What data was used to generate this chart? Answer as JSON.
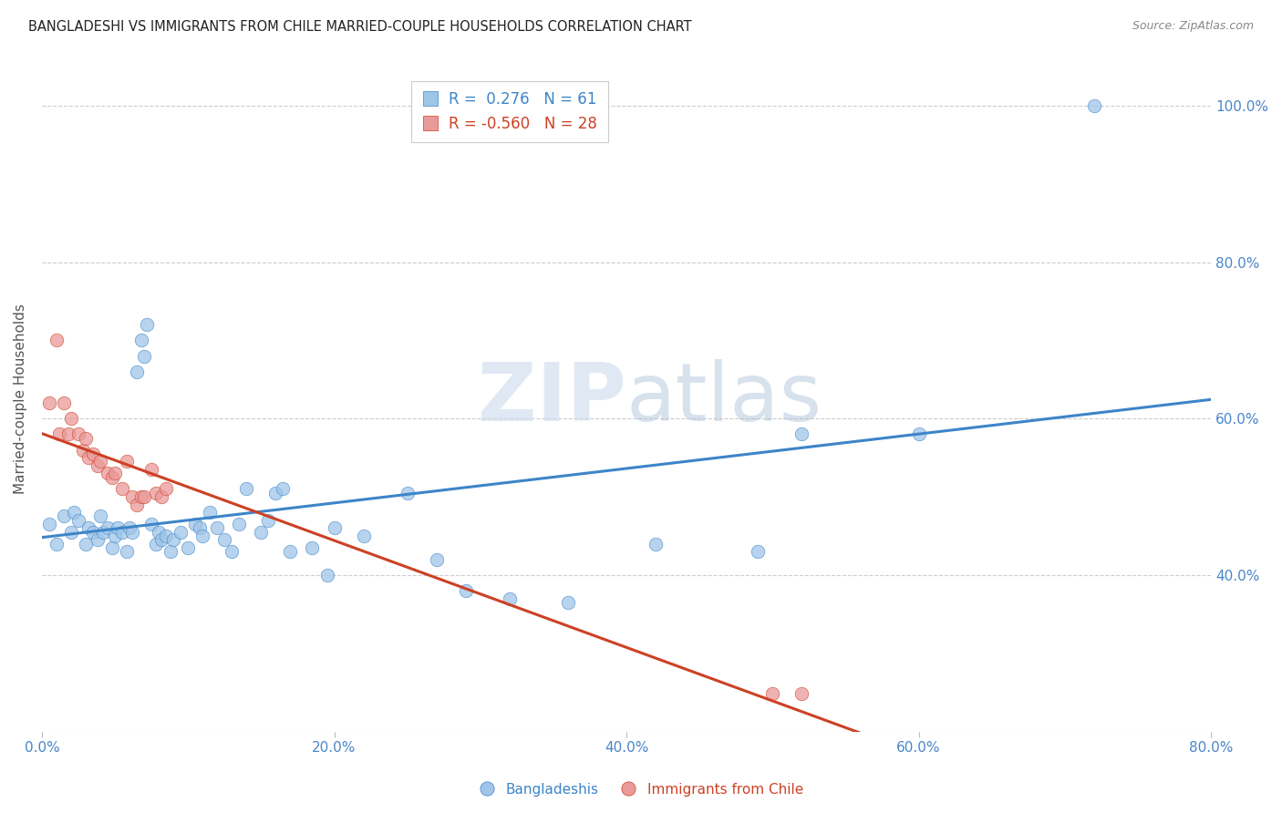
{
  "title": "BANGLADESHI VS IMMIGRANTS FROM CHILE MARRIED-COUPLE HOUSEHOLDS CORRELATION CHART",
  "source": "Source: ZipAtlas.com",
  "ylabel": "Married-couple Households",
  "xlim": [
    0.0,
    0.8
  ],
  "ylim": [
    0.2,
    1.05
  ],
  "ytick_values": [
    0.2,
    0.4,
    0.6,
    0.8,
    1.0
  ],
  "ytick_labels": [
    "",
    "40.0%",
    "60.0%",
    "80.0%",
    "100.0%"
  ],
  "xtick_values": [
    0.0,
    0.2,
    0.4,
    0.6,
    0.8
  ],
  "xtick_labels": [
    "0.0%",
    "20.0%",
    "40.0%",
    "60.0%",
    "80.0%"
  ],
  "blue_R": 0.276,
  "blue_N": 61,
  "pink_R": -0.56,
  "pink_N": 28,
  "blue_color": "#9fc5e8",
  "pink_color": "#ea9999",
  "blue_line_color": "#3d85c8",
  "pink_line_color": "#cc4125",
  "axis_color": "#4a86c8",
  "blue_scatter_x": [
    0.005,
    0.01,
    0.015,
    0.02,
    0.022,
    0.025,
    0.03,
    0.032,
    0.035,
    0.038,
    0.04,
    0.042,
    0.045,
    0.048,
    0.05,
    0.052,
    0.055,
    0.058,
    0.06,
    0.062,
    0.065,
    0.068,
    0.07,
    0.072,
    0.075,
    0.078,
    0.08,
    0.082,
    0.085,
    0.088,
    0.09,
    0.095,
    0.1,
    0.105,
    0.108,
    0.11,
    0.115,
    0.12,
    0.125,
    0.13,
    0.135,
    0.14,
    0.15,
    0.155,
    0.16,
    0.165,
    0.17,
    0.185,
    0.195,
    0.2,
    0.22,
    0.25,
    0.27,
    0.29,
    0.32,
    0.36,
    0.42,
    0.49,
    0.52,
    0.6,
    0.72
  ],
  "blue_scatter_y": [
    0.465,
    0.44,
    0.475,
    0.455,
    0.48,
    0.47,
    0.44,
    0.46,
    0.455,
    0.445,
    0.475,
    0.455,
    0.46,
    0.435,
    0.45,
    0.46,
    0.455,
    0.43,
    0.46,
    0.455,
    0.66,
    0.7,
    0.68,
    0.72,
    0.465,
    0.44,
    0.455,
    0.445,
    0.45,
    0.43,
    0.445,
    0.455,
    0.435,
    0.465,
    0.46,
    0.45,
    0.48,
    0.46,
    0.445,
    0.43,
    0.465,
    0.51,
    0.455,
    0.47,
    0.505,
    0.51,
    0.43,
    0.435,
    0.4,
    0.46,
    0.45,
    0.505,
    0.42,
    0.38,
    0.37,
    0.365,
    0.44,
    0.43,
    0.58,
    0.58,
    1.0
  ],
  "pink_scatter_x": [
    0.005,
    0.01,
    0.012,
    0.015,
    0.018,
    0.02,
    0.025,
    0.028,
    0.03,
    0.032,
    0.035,
    0.038,
    0.04,
    0.045,
    0.048,
    0.05,
    0.055,
    0.058,
    0.062,
    0.065,
    0.068,
    0.07,
    0.075,
    0.078,
    0.082,
    0.085,
    0.5,
    0.52
  ],
  "pink_scatter_y": [
    0.62,
    0.7,
    0.58,
    0.62,
    0.58,
    0.6,
    0.58,
    0.56,
    0.575,
    0.55,
    0.555,
    0.54,
    0.545,
    0.53,
    0.525,
    0.53,
    0.51,
    0.545,
    0.5,
    0.49,
    0.5,
    0.5,
    0.535,
    0.505,
    0.5,
    0.51,
    0.248,
    0.248
  ]
}
